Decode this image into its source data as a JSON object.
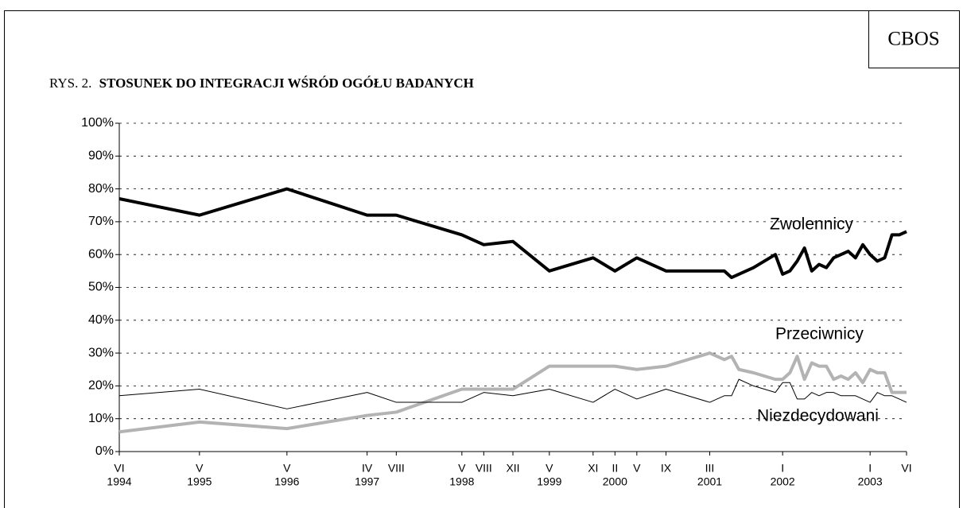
{
  "chart_data": {
    "type": "line",
    "corner_label": "CBOS",
    "title_prefix": "RYS. 2.",
    "title": "STOSUNEK DO INTEGRACJI WŚRÓD OGÓŁU BADANYCH",
    "x": [
      "1994-06",
      "1995-05",
      "1996-05",
      "1997-04",
      "1997-08",
      "1998-05",
      "1998-08",
      "1998-12",
      "1999-05",
      "1999-11",
      "2000-02",
      "2000-05",
      "2000-09",
      "2001-03",
      "2001-05",
      "2001-06",
      "2001-07",
      "2001-09",
      "2001-12",
      "2002-01",
      "2002-02",
      "2002-03",
      "2002-04",
      "2002-05",
      "2002-06",
      "2002-07",
      "2002-08",
      "2002-09",
      "2002-10",
      "2002-11",
      "2002-12",
      "2003-01",
      "2003-02",
      "2003-03",
      "2003-04",
      "2003-05",
      "2003-06"
    ],
    "series": [
      {
        "name": "Zwolennicy",
        "color": "#000000",
        "width": 4,
        "values": [
          77,
          72,
          80,
          72,
          72,
          66,
          63,
          64,
          55,
          59,
          55,
          59,
          55,
          55,
          55,
          53,
          54,
          56,
          60,
          54,
          55,
          58,
          62,
          55,
          57,
          56,
          59,
          60,
          61,
          59,
          63,
          60,
          58,
          59,
          66,
          66,
          67
        ]
      },
      {
        "name": "Przeciwnicy",
        "color": "#b3b3b3",
        "width": 4,
        "values": [
          6,
          9,
          7,
          11,
          12,
          19,
          19,
          19,
          26,
          26,
          26,
          25,
          26,
          30,
          28,
          29,
          25,
          24,
          22,
          22,
          24,
          29,
          22,
          27,
          26,
          26,
          22,
          23,
          22,
          24,
          21,
          25,
          24,
          24,
          18,
          18,
          18
        ]
      },
      {
        "name": "Niezdecydowani",
        "color": "#000000",
        "width": 1,
        "values": [
          17,
          19,
          13,
          18,
          15,
          15,
          18,
          17,
          19,
          15,
          19,
          16,
          19,
          15,
          17,
          17,
          22,
          20,
          18,
          21,
          21,
          16,
          16,
          18,
          17,
          18,
          18,
          17,
          17,
          17,
          16,
          15,
          18,
          17,
          17,
          16,
          15
        ]
      }
    ],
    "xlim": [
      "1994-06",
      "2003-06"
    ],
    "xticks": [
      {
        "value": "1994-06",
        "label": "VI"
      },
      {
        "value": "1995-05",
        "label": "V"
      },
      {
        "value": "1996-05",
        "label": "V"
      },
      {
        "value": "1997-04",
        "label": "IV"
      },
      {
        "value": "1997-08",
        "label": "VIII"
      },
      {
        "value": "1998-05",
        "label": "V"
      },
      {
        "value": "1998-08",
        "label": "VIII"
      },
      {
        "value": "1998-12",
        "label": "XII"
      },
      {
        "value": "1999-05",
        "label": "V"
      },
      {
        "value": "1999-11",
        "label": "XI"
      },
      {
        "value": "2000-02",
        "label": "II"
      },
      {
        "value": "2000-05",
        "label": "V"
      },
      {
        "value": "2000-09",
        "label": "IX"
      },
      {
        "value": "2001-03",
        "label": "III"
      },
      {
        "value": "2002-01",
        "label": "I"
      },
      {
        "value": "2003-01",
        "label": "I"
      },
      {
        "value": "2003-06",
        "label": "VI"
      }
    ],
    "year_labels": [
      {
        "value": "1994-06",
        "label": "1994"
      },
      {
        "value": "1995-05",
        "label": "1995"
      },
      {
        "value": "1996-05",
        "label": "1996"
      },
      {
        "value": "1997-04",
        "label": "1997"
      },
      {
        "value": "1998-05",
        "label": "1998"
      },
      {
        "value": "1999-05",
        "label": "1999"
      },
      {
        "value": "2000-02",
        "label": "2000"
      },
      {
        "value": "2001-03",
        "label": "2001"
      },
      {
        "value": "2002-01",
        "label": "2002"
      },
      {
        "value": "2003-01",
        "label": "2003"
      }
    ],
    "ylim": [
      0,
      100
    ],
    "yticks": [
      {
        "value": 0,
        "label": "0%"
      },
      {
        "value": 10,
        "label": "10%"
      },
      {
        "value": 20,
        "label": "20%"
      },
      {
        "value": 30,
        "label": "30%"
      },
      {
        "value": 40,
        "label": "40%"
      },
      {
        "value": 50,
        "label": "50%"
      },
      {
        "value": 60,
        "label": "60%"
      },
      {
        "value": 70,
        "label": "70%"
      },
      {
        "value": 80,
        "label": "80%"
      },
      {
        "value": 90,
        "label": "90%"
      },
      {
        "value": 100,
        "label": "100%"
      }
    ],
    "grid": true
  }
}
